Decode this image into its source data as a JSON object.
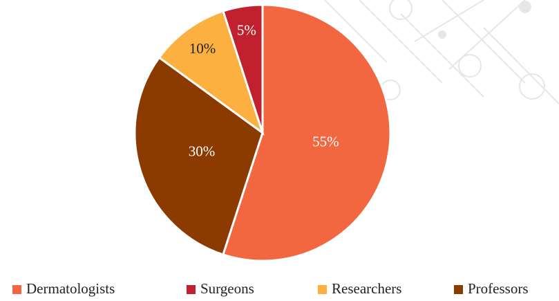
{
  "chart_data": {
    "type": "pie",
    "categories": [
      "Dermatologists",
      "Surgeons",
      "Researchers",
      "Professors"
    ],
    "values": [
      55,
      5,
      10,
      30
    ],
    "value_labels": [
      "55%",
      "5%",
      "10%",
      "30%"
    ],
    "colors": [
      "#f26640",
      "#c1202f",
      "#fbb040",
      "#8b3a00"
    ],
    "legend": "bottom"
  }
}
